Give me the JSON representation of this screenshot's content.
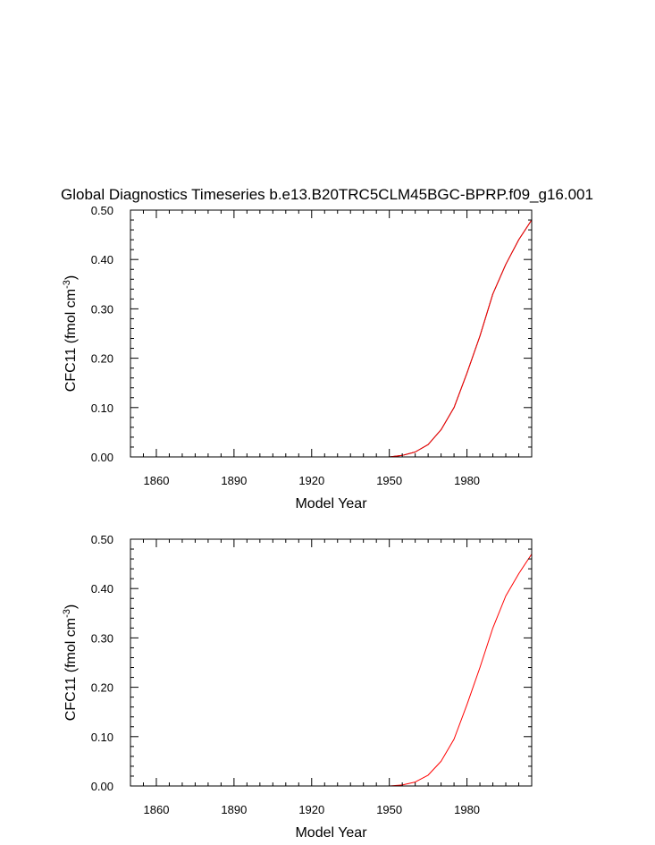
{
  "figure_title": "Global Diagnostics Timeseries b.e13.B20TRC5CLM45BGC-BPRP.f09_g16.001",
  "colors": {
    "series_primary": "#000000",
    "series_overlay": "#ff0000",
    "axes": "#000000"
  },
  "chart_data": [
    {
      "type": "line",
      "title": "Global Diagnostics Timeseries b.e13.B20TRC5CLM45BGC-BPRP.f09_g16.001",
      "xlabel": "Model Year",
      "ylabel_main": "CFC11 (fmol cm",
      "ylabel_sup": "-3",
      "ylabel_close": ")",
      "xlim": [
        1850,
        2005
      ],
      "ylim": [
        0.0,
        0.5
      ],
      "xticks": [
        1860,
        1890,
        1920,
        1950,
        1980
      ],
      "xtick_labels": [
        "1860",
        "1890",
        "1920",
        "1950",
        "1980"
      ],
      "yticks": [
        0.0,
        0.1,
        0.2,
        0.3,
        0.4,
        0.5
      ],
      "ytick_labels": [
        "0.00",
        "0.10",
        "0.20",
        "0.30",
        "0.40",
        "0.50"
      ],
      "series": [
        {
          "name": "CFC11 (black)",
          "color": "#000000",
          "x": [
            1850,
            1940,
            1950,
            1955,
            1960,
            1965,
            1970,
            1975,
            1980,
            1985,
            1990,
            1995,
            2000,
            2005
          ],
          "y": [
            0.0,
            0.0,
            0.0,
            0.003,
            0.01,
            0.025,
            0.055,
            0.1,
            0.17,
            0.245,
            0.33,
            0.39,
            0.44,
            0.48
          ]
        },
        {
          "name": "CFC11 (red)",
          "color": "#ff0000",
          "x": [
            1850,
            1940,
            1950,
            1955,
            1960,
            1965,
            1970,
            1975,
            1980,
            1985,
            1990,
            1995,
            2000,
            2005
          ],
          "y": [
            0.0,
            0.0,
            0.0,
            0.003,
            0.01,
            0.025,
            0.055,
            0.1,
            0.17,
            0.245,
            0.33,
            0.39,
            0.44,
            0.48
          ]
        }
      ]
    },
    {
      "type": "line",
      "title": "",
      "xlabel": "Model Year",
      "ylabel_main": "CFC11 (fmol cm",
      "ylabel_sup": "-3",
      "ylabel_close": ")",
      "xlim": [
        1850,
        2005
      ],
      "ylim": [
        0.0,
        0.5
      ],
      "xticks": [
        1860,
        1890,
        1920,
        1950,
        1980
      ],
      "xtick_labels": [
        "1860",
        "1890",
        "1920",
        "1950",
        "1980"
      ],
      "yticks": [
        0.0,
        0.1,
        0.2,
        0.3,
        0.4,
        0.5
      ],
      "ytick_labels": [
        "0.00",
        "0.10",
        "0.20",
        "0.30",
        "0.40",
        "0.50"
      ],
      "series": [
        {
          "name": "CFC11 (red)",
          "color": "#ff0000",
          "x": [
            1850,
            1940,
            1950,
            1955,
            1960,
            1965,
            1970,
            1975,
            1980,
            1985,
            1990,
            1995,
            2000,
            2005
          ],
          "y": [
            0.0,
            0.0,
            0.0,
            0.002,
            0.008,
            0.022,
            0.05,
            0.095,
            0.165,
            0.24,
            0.32,
            0.385,
            0.43,
            0.47
          ]
        }
      ]
    }
  ]
}
